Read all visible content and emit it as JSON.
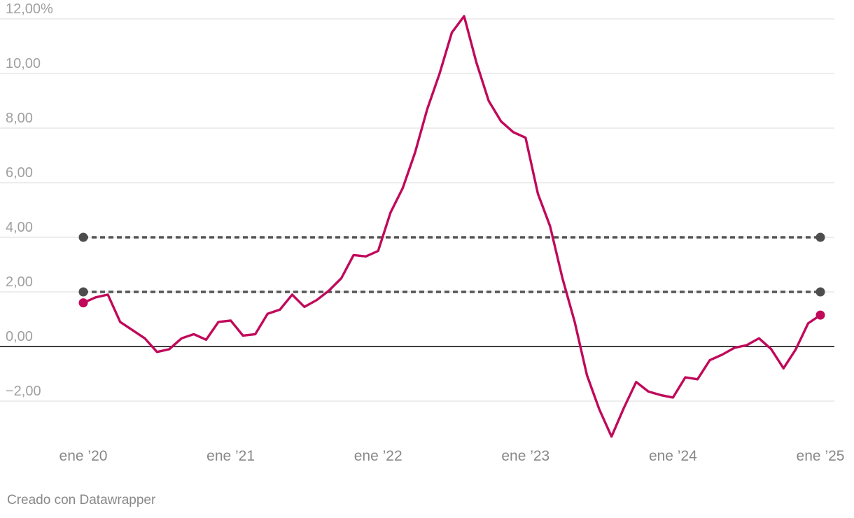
{
  "chart_data": {
    "type": "line",
    "title": "",
    "xlabel": "",
    "ylabel": "",
    "x_start": "2020-01",
    "x_end": "2024-12",
    "xlim": [
      "2020-01",
      "2025-01"
    ],
    "ylim": [
      -3.3,
      12.2
    ],
    "grid": true,
    "y_ticks": [
      {
        "value": -2,
        "label": "−2,00"
      },
      {
        "value": 0,
        "label": "0,00"
      },
      {
        "value": 2,
        "label": "2,00"
      },
      {
        "value": 4,
        "label": "4,00"
      },
      {
        "value": 6,
        "label": "6,00"
      },
      {
        "value": 8,
        "label": "8,00"
      },
      {
        "value": 10,
        "label": "10,00"
      },
      {
        "value": 12,
        "label": "12,00%"
      }
    ],
    "x_ticks": [
      {
        "value": "2020-01",
        "label": "ene ’20"
      },
      {
        "value": "2021-01",
        "label": "ene ’21"
      },
      {
        "value": "2022-01",
        "label": "ene ’22"
      },
      {
        "value": "2023-01",
        "label": "ene ’23"
      },
      {
        "value": "2024-01",
        "label": "ene ’24"
      },
      {
        "value": "2025-01",
        "label": "ene ’25"
      }
    ],
    "series": [
      {
        "color": "#c0095a",
        "values": [
          1.6,
          1.8,
          1.9,
          0.9,
          0.6,
          0.3,
          -0.2,
          -0.1,
          0.3,
          0.45,
          0.25,
          0.9,
          0.95,
          0.4,
          0.45,
          1.2,
          1.35,
          1.9,
          1.45,
          1.7,
          2.05,
          2.5,
          3.35,
          3.3,
          3.5,
          4.9,
          5.8,
          7.1,
          8.7,
          10.0,
          11.5,
          12.1,
          10.4,
          9.0,
          8.25,
          7.85,
          7.65,
          5.6,
          4.4,
          2.5,
          0.9,
          -1.05,
          -2.3,
          -3.3,
          -2.25,
          -1.3,
          -1.65,
          -1.78,
          -1.87,
          -1.13,
          -1.2,
          -0.5,
          -0.3,
          -0.05,
          0.05,
          0.3,
          -0.1,
          -0.8,
          -0.1,
          0.85,
          1.15
        ]
      }
    ],
    "reference_lines": [
      {
        "value": 4,
        "color": "#555555",
        "style": "dotted"
      },
      {
        "value": 2,
        "color": "#555555",
        "style": "dotted"
      }
    ]
  },
  "credit": "Creado con Datawrapper"
}
